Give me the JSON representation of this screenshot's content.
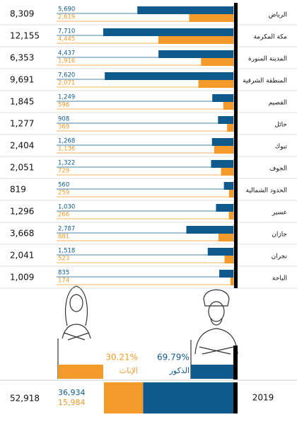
{
  "chart_data": {
    "type": "bar",
    "categories": [
      "الرياض",
      "مكة المكرمة",
      "المدينة المنورة",
      "المنطقة الشرقية",
      "القصيم",
      "حائل",
      "تبوك",
      "الجوف",
      "الحدود الشمالية",
      "عسير",
      "جازان",
      "نجران",
      "الباحة"
    ],
    "totals": {
      "values": [
        8309,
        12155,
        6353,
        9691,
        1845,
        1277,
        2404,
        2051,
        819,
        1296,
        3668,
        2041,
        1009
      ],
      "value_labels": [
        "8,309",
        "12,155",
        "6,353",
        "9,691",
        "1,845",
        "1,277",
        "2,404",
        "2,051",
        "819",
        "1,296",
        "3,668",
        "2,041",
        "1,009"
      ]
    },
    "series": [
      {
        "name": "الذكور",
        "color": "#0f5a8c",
        "values": [
          5690,
          7710,
          4437,
          7620,
          1249,
          908,
          1268,
          1322,
          560,
          1030,
          2787,
          1518,
          835
        ],
        "value_labels": [
          "5,690",
          "7,710",
          "4,437",
          "7,620",
          "1,249",
          "908",
          "1,268",
          "1,322",
          "560",
          "1,030",
          "2,787",
          "1,518",
          "835"
        ],
        "total": 36934,
        "total_label": "36,934",
        "share": 69.79,
        "share_label": "69.79%"
      },
      {
        "name": "الإناث",
        "color": "#f39a2a",
        "values": [
          2619,
          4445,
          1916,
          2071,
          596,
          369,
          1136,
          729,
          259,
          266,
          881,
          523,
          174
        ],
        "value_labels": [
          "2,619",
          "4,445",
          "1,916",
          "2,071",
          "596",
          "369",
          "1,136",
          "729",
          "259",
          "266",
          "881",
          "523",
          "174"
        ],
        "total": 15984,
        "total_label": "15,984",
        "share": 30.21,
        "share_label": "30.21%"
      }
    ],
    "summary": {
      "total": 52918,
      "total_label": "52,918",
      "year": "2019"
    }
  }
}
